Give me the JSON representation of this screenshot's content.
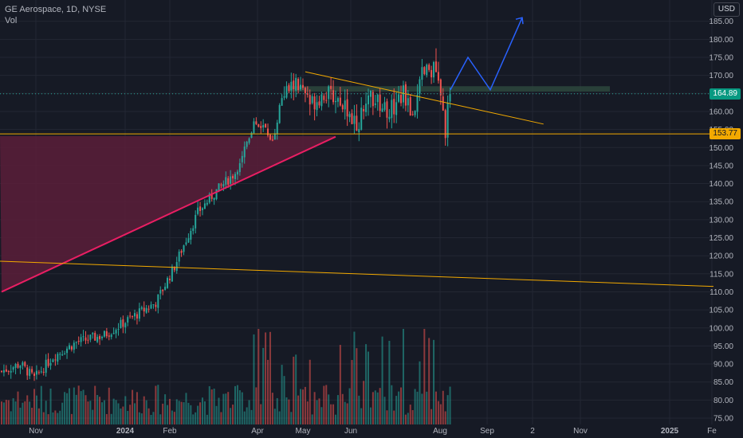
{
  "legend": {
    "symbol_line": "GE Aerospace, 1D, NYSE",
    "volume_label": "Vol"
  },
  "currency": "USD",
  "price_tags": {
    "last": {
      "text": "164.89",
      "value": 164.89,
      "color": "#089981"
    },
    "level": {
      "text": "153.77",
      "value": 153.77,
      "color": "#f2a900"
    }
  },
  "colors": {
    "up": "#26a69a",
    "down": "#ef5350",
    "background": "#161a25",
    "grid": "#232733",
    "trendline_pink": "#e91e63",
    "pink_zone": "#5a1e3a",
    "orange_line": "#f2a900",
    "resistance_zone": "#2e4a3e",
    "projection": "#2962ff",
    "axis_text": "#b2b5be"
  },
  "chart_data": {
    "type": "candlestick",
    "title": "GE Aerospace, 1D, NYSE",
    "currency": "USD",
    "y_ticks": [
      75,
      80,
      85,
      90,
      95,
      100,
      105,
      110,
      115,
      120,
      125,
      130,
      135,
      140,
      145,
      150,
      155,
      160,
      165,
      170,
      175,
      180,
      185
    ],
    "y_tick_labels": [
      "75.00",
      "80.00",
      "85.00",
      "90.00",
      "95.00",
      "100.00",
      "105.00",
      "110.00",
      "115.00",
      "120.00",
      "125.00",
      "130.00",
      "135.00",
      "140.00",
      "145.00",
      "150.00",
      "155.00",
      "160.00",
      "165.00",
      "170.00",
      "175.00",
      "180.00",
      "185.00"
    ],
    "x_tick_labels": [
      "Nov",
      "2024",
      "Feb",
      "Apr",
      "May",
      "Jun",
      "Aug",
      "Sep",
      "2",
      "Nov",
      "2025",
      "Fe"
    ],
    "last_price": 164.89,
    "horizontal_level": 153.77,
    "price_waypoints": [
      {
        "day": 0,
        "price": 88
      },
      {
        "day": 8,
        "price": 90
      },
      {
        "day": 14,
        "price": 86
      },
      {
        "day": 22,
        "price": 92
      },
      {
        "day": 32,
        "price": 96
      },
      {
        "day": 44,
        "price": 98
      },
      {
        "day": 56,
        "price": 103
      },
      {
        "day": 66,
        "price": 107
      },
      {
        "day": 74,
        "price": 117
      },
      {
        "day": 84,
        "price": 132
      },
      {
        "day": 92,
        "price": 138
      },
      {
        "day": 100,
        "price": 143
      },
      {
        "day": 104,
        "price": 150
      },
      {
        "day": 108,
        "price": 157
      },
      {
        "day": 112,
        "price": 156
      },
      {
        "day": 116,
        "price": 152
      },
      {
        "day": 120,
        "price": 164
      },
      {
        "day": 126,
        "price": 168
      },
      {
        "day": 132,
        "price": 162
      },
      {
        "day": 138,
        "price": 165
      },
      {
        "day": 146,
        "price": 163
      },
      {
        "day": 152,
        "price": 156
      },
      {
        "day": 158,
        "price": 164
      },
      {
        "day": 166,
        "price": 160
      },
      {
        "day": 172,
        "price": 165
      },
      {
        "day": 176,
        "price": 159
      },
      {
        "day": 180,
        "price": 170
      },
      {
        "day": 184,
        "price": 172
      },
      {
        "day": 186,
        "price": 171
      },
      {
        "day": 190,
        "price": 155
      },
      {
        "day": 192,
        "price": 164.89
      }
    ],
    "drawings": {
      "resistance_zone": {
        "from_day": 122,
        "to_day": 256,
        "low": 165.5,
        "high": 167
      },
      "orange_trendline_upper": {
        "from": {
          "day": 130,
          "price": 171
        },
        "to": {
          "day": 232,
          "price": 156.5
        }
      },
      "orange_trendline_lower": {
        "from": {
          "day": 0,
          "price": 118.5
        },
        "to": {
          "day": 300,
          "price": 111.5
        }
      },
      "pink_trendline": {
        "from": {
          "day": 0,
          "price": 110
        },
        "to": {
          "day": 143,
          "price": 153
        }
      },
      "projection_path": [
        {
          "day": 189,
          "price": 166
        },
        {
          "day": 196,
          "price": 175
        },
        {
          "day": 205,
          "price": 166
        },
        {
          "day": 219,
          "price": 186
        }
      ]
    }
  }
}
